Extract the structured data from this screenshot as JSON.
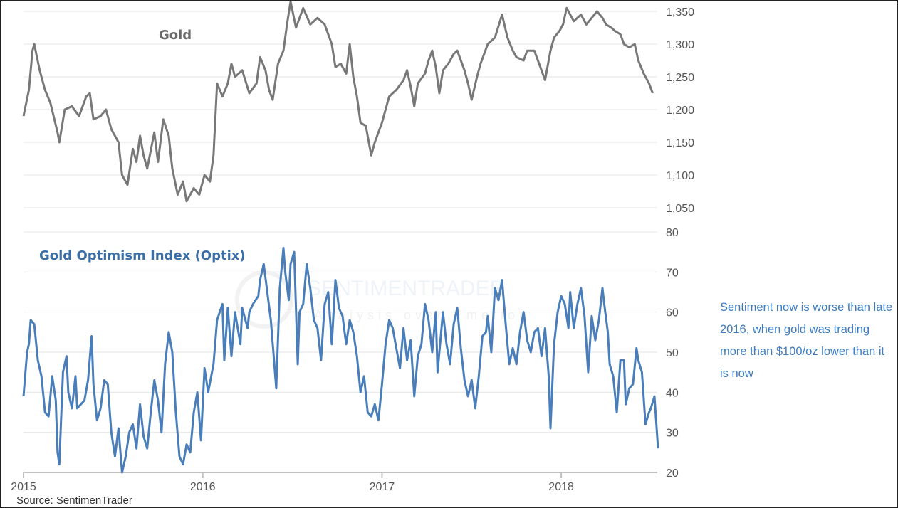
{
  "colors": {
    "gold": "#787878",
    "optix": "#4a7ebb",
    "grid": "#e6e6e6",
    "axis": "#c0c0c0",
    "note": "#3d7cc0"
  },
  "watermark": {
    "brand": "SENTIMENTRADER",
    "tagline": "Analysis over Emotion"
  },
  "annotation": "Sentiment now is worse than late 2016, when gold was trading more than $100/oz lower than it is now",
  "source": "Source: SentimenTrader",
  "chart_data": [
    {
      "type": "line",
      "title": "Gold",
      "ylim": [
        1050,
        1350
      ],
      "yticks": [
        "1,050",
        "1,100",
        "1,150",
        "1,200",
        "1,250",
        "1,300",
        "1,350"
      ],
      "ytick_values": [
        1050,
        1100,
        1150,
        1200,
        1250,
        1300,
        1350
      ],
      "xlim": [
        2015,
        2018.55
      ],
      "points": [
        [
          2015.0,
          1190
        ],
        [
          2015.03,
          1230
        ],
        [
          2015.05,
          1290
        ],
        [
          2015.06,
          1300
        ],
        [
          2015.09,
          1260
        ],
        [
          2015.12,
          1230
        ],
        [
          2015.15,
          1210
        ],
        [
          2015.19,
          1165
        ],
        [
          2015.2,
          1150
        ],
        [
          2015.23,
          1200
        ],
        [
          2015.27,
          1205
        ],
        [
          2015.31,
          1190
        ],
        [
          2015.35,
          1220
        ],
        [
          2015.37,
          1225
        ],
        [
          2015.39,
          1185
        ],
        [
          2015.43,
          1190
        ],
        [
          2015.46,
          1200
        ],
        [
          2015.49,
          1170
        ],
        [
          2015.53,
          1150
        ],
        [
          2015.55,
          1100
        ],
        [
          2015.58,
          1085
        ],
        [
          2015.61,
          1140
        ],
        [
          2015.63,
          1120
        ],
        [
          2015.65,
          1160
        ],
        [
          2015.67,
          1130
        ],
        [
          2015.69,
          1110
        ],
        [
          2015.73,
          1165
        ],
        [
          2015.75,
          1120
        ],
        [
          2015.78,
          1185
        ],
        [
          2015.81,
          1160
        ],
        [
          2015.83,
          1110
        ],
        [
          2015.86,
          1070
        ],
        [
          2015.89,
          1090
        ],
        [
          2015.91,
          1060
        ],
        [
          2015.95,
          1080
        ],
        [
          2015.98,
          1070
        ],
        [
          2016.01,
          1100
        ],
        [
          2016.04,
          1090
        ],
        [
          2016.06,
          1130
        ],
        [
          2016.08,
          1240
        ],
        [
          2016.11,
          1220
        ],
        [
          2016.14,
          1240
        ],
        [
          2016.16,
          1270
        ],
        [
          2016.18,
          1250
        ],
        [
          2016.22,
          1260
        ],
        [
          2016.26,
          1225
        ],
        [
          2016.3,
          1240
        ],
        [
          2016.32,
          1280
        ],
        [
          2016.35,
          1260
        ],
        [
          2016.37,
          1230
        ],
        [
          2016.39,
          1215
        ],
        [
          2016.42,
          1270
        ],
        [
          2016.45,
          1290
        ],
        [
          2016.47,
          1330
        ],
        [
          2016.49,
          1365
        ],
        [
          2016.52,
          1325
        ],
        [
          2016.56,
          1355
        ],
        [
          2016.6,
          1330
        ],
        [
          2016.64,
          1340
        ],
        [
          2016.68,
          1330
        ],
        [
          2016.72,
          1300
        ],
        [
          2016.74,
          1265
        ],
        [
          2016.77,
          1270
        ],
        [
          2016.8,
          1255
        ],
        [
          2016.82,
          1300
        ],
        [
          2016.84,
          1250
        ],
        [
          2016.86,
          1220
        ],
        [
          2016.88,
          1180
        ],
        [
          2016.91,
          1175
        ],
        [
          2016.94,
          1130
        ],
        [
          2016.96,
          1150
        ],
        [
          2017.0,
          1180
        ],
        [
          2017.04,
          1220
        ],
        [
          2017.08,
          1230
        ],
        [
          2017.12,
          1245
        ],
        [
          2017.14,
          1260
        ],
        [
          2017.16,
          1235
        ],
        [
          2017.18,
          1205
        ],
        [
          2017.2,
          1240
        ],
        [
          2017.24,
          1255
        ],
        [
          2017.26,
          1275
        ],
        [
          2017.28,
          1290
        ],
        [
          2017.3,
          1265
        ],
        [
          2017.32,
          1225
        ],
        [
          2017.34,
          1260
        ],
        [
          2017.37,
          1270
        ],
        [
          2017.4,
          1285
        ],
        [
          2017.42,
          1290
        ],
        [
          2017.46,
          1260
        ],
        [
          2017.48,
          1240
        ],
        [
          2017.5,
          1215
        ],
        [
          2017.53,
          1250
        ],
        [
          2017.55,
          1270
        ],
        [
          2017.59,
          1300
        ],
        [
          2017.63,
          1310
        ],
        [
          2017.67,
          1345
        ],
        [
          2017.7,
          1310
        ],
        [
          2017.73,
          1290
        ],
        [
          2017.75,
          1280
        ],
        [
          2017.79,
          1275
        ],
        [
          2017.81,
          1290
        ],
        [
          2017.85,
          1290
        ],
        [
          2017.89,
          1260
        ],
        [
          2017.91,
          1245
        ],
        [
          2017.94,
          1290
        ],
        [
          2017.96,
          1310
        ],
        [
          2017.99,
          1320
        ],
        [
          2018.01,
          1330
        ],
        [
          2018.03,
          1355
        ],
        [
          2018.07,
          1335
        ],
        [
          2018.11,
          1345
        ],
        [
          2018.14,
          1330
        ],
        [
          2018.17,
          1340
        ],
        [
          2018.2,
          1350
        ],
        [
          2018.23,
          1340
        ],
        [
          2018.25,
          1330
        ],
        [
          2018.28,
          1325
        ],
        [
          2018.3,
          1320
        ],
        [
          2018.33,
          1315
        ],
        [
          2018.35,
          1300
        ],
        [
          2018.38,
          1295
        ],
        [
          2018.41,
          1300
        ],
        [
          2018.43,
          1275
        ],
        [
          2018.46,
          1255
        ],
        [
          2018.49,
          1240
        ],
        [
          2018.51,
          1225
        ]
      ]
    },
    {
      "type": "line",
      "title": "Gold Optimism Index (Optix)",
      "ylim": [
        20,
        80
      ],
      "yticks": [
        "20",
        "30",
        "40",
        "50",
        "60",
        "70",
        "80"
      ],
      "ytick_values": [
        20,
        30,
        40,
        50,
        60,
        70,
        80
      ],
      "xlim": [
        2015,
        2018.55
      ],
      "xticks": [
        "2015",
        "2016",
        "2017",
        "2018"
      ],
      "xtick_values": [
        2015,
        2016,
        2017,
        2018
      ],
      "points": [
        [
          2015.0,
          39
        ],
        [
          2015.02,
          50
        ],
        [
          2015.03,
          52
        ],
        [
          2015.04,
          58
        ],
        [
          2015.06,
          57
        ],
        [
          2015.08,
          48
        ],
        [
          2015.1,
          44
        ],
        [
          2015.12,
          35
        ],
        [
          2015.14,
          34
        ],
        [
          2015.16,
          44
        ],
        [
          2015.18,
          38
        ],
        [
          2015.19,
          25
        ],
        [
          2015.2,
          22
        ],
        [
          2015.22,
          45
        ],
        [
          2015.24,
          49
        ],
        [
          2015.25,
          40
        ],
        [
          2015.27,
          36
        ],
        [
          2015.29,
          44
        ],
        [
          2015.3,
          36
        ],
        [
          2015.32,
          37
        ],
        [
          2015.34,
          38
        ],
        [
          2015.36,
          43
        ],
        [
          2015.38,
          54
        ],
        [
          2015.39,
          42
        ],
        [
          2015.41,
          33
        ],
        [
          2015.43,
          36
        ],
        [
          2015.45,
          43
        ],
        [
          2015.47,
          42
        ],
        [
          2015.49,
          30
        ],
        [
          2015.51,
          24
        ],
        [
          2015.53,
          31
        ],
        [
          2015.55,
          20
        ],
        [
          2015.57,
          24
        ],
        [
          2015.59,
          30
        ],
        [
          2015.61,
          32
        ],
        [
          2015.63,
          26
        ],
        [
          2015.65,
          37
        ],
        [
          2015.67,
          29
        ],
        [
          2015.69,
          26
        ],
        [
          2015.71,
          35
        ],
        [
          2015.73,
          43
        ],
        [
          2015.75,
          38
        ],
        [
          2015.77,
          30
        ],
        [
          2015.79,
          47
        ],
        [
          2015.81,
          55
        ],
        [
          2015.83,
          50
        ],
        [
          2015.85,
          35
        ],
        [
          2015.87,
          24
        ],
        [
          2015.89,
          22
        ],
        [
          2015.91,
          27
        ],
        [
          2015.93,
          25
        ],
        [
          2015.95,
          35
        ],
        [
          2015.97,
          40
        ],
        [
          2015.99,
          28
        ],
        [
          2016.01,
          46
        ],
        [
          2016.03,
          40
        ],
        [
          2016.06,
          47
        ],
        [
          2016.08,
          58
        ],
        [
          2016.11,
          62
        ],
        [
          2016.12,
          48
        ],
        [
          2016.14,
          61
        ],
        [
          2016.16,
          49
        ],
        [
          2016.18,
          60
        ],
        [
          2016.21,
          52
        ],
        [
          2016.22,
          61
        ],
        [
          2016.25,
          56
        ],
        [
          2016.26,
          60
        ],
        [
          2016.28,
          62
        ],
        [
          2016.31,
          64
        ],
        [
          2016.32,
          68
        ],
        [
          2016.34,
          72
        ],
        [
          2016.36,
          65
        ],
        [
          2016.38,
          58
        ],
        [
          2016.41,
          41
        ],
        [
          2016.43,
          66
        ],
        [
          2016.45,
          76
        ],
        [
          2016.46,
          70
        ],
        [
          2016.48,
          63
        ],
        [
          2016.49,
          72
        ],
        [
          2016.51,
          75
        ],
        [
          2016.53,
          47
        ],
        [
          2016.54,
          60
        ],
        [
          2016.56,
          62
        ],
        [
          2016.58,
          72
        ],
        [
          2016.6,
          66
        ],
        [
          2016.62,
          58
        ],
        [
          2016.64,
          56
        ],
        [
          2016.66,
          48
        ],
        [
          2016.68,
          62
        ],
        [
          2016.7,
          65
        ],
        [
          2016.72,
          52
        ],
        [
          2016.74,
          68
        ],
        [
          2016.76,
          61
        ],
        [
          2016.78,
          59
        ],
        [
          2016.8,
          52
        ],
        [
          2016.82,
          58
        ],
        [
          2016.84,
          55
        ],
        [
          2016.86,
          49
        ],
        [
          2016.88,
          40
        ],
        [
          2016.9,
          44
        ],
        [
          2016.92,
          35
        ],
        [
          2016.94,
          34
        ],
        [
          2016.96,
          37
        ],
        [
          2016.98,
          33
        ],
        [
          2017.0,
          42
        ],
        [
          2017.02,
          52
        ],
        [
          2017.04,
          58
        ],
        [
          2017.06,
          56
        ],
        [
          2017.08,
          51
        ],
        [
          2017.1,
          46
        ],
        [
          2017.12,
          56
        ],
        [
          2017.14,
          48
        ],
        [
          2017.16,
          53
        ],
        [
          2017.18,
          39
        ],
        [
          2017.2,
          49
        ],
        [
          2017.22,
          52
        ],
        [
          2017.24,
          62
        ],
        [
          2017.26,
          58
        ],
        [
          2017.28,
          50
        ],
        [
          2017.3,
          60
        ],
        [
          2017.31,
          45
        ],
        [
          2017.34,
          60
        ],
        [
          2017.36,
          52
        ],
        [
          2017.38,
          47
        ],
        [
          2017.4,
          57
        ],
        [
          2017.42,
          61
        ],
        [
          2017.44,
          51
        ],
        [
          2017.46,
          43
        ],
        [
          2017.48,
          39
        ],
        [
          2017.5,
          43
        ],
        [
          2017.52,
          36
        ],
        [
          2017.54,
          44
        ],
        [
          2017.56,
          54
        ],
        [
          2017.58,
          55
        ],
        [
          2017.59,
          59
        ],
        [
          2017.61,
          50
        ],
        [
          2017.63,
          66
        ],
        [
          2017.65,
          63
        ],
        [
          2017.67,
          68
        ],
        [
          2017.69,
          57
        ],
        [
          2017.71,
          47
        ],
        [
          2017.73,
          51
        ],
        [
          2017.75,
          47
        ],
        [
          2017.77,
          55
        ],
        [
          2017.79,
          60
        ],
        [
          2017.81,
          53
        ],
        [
          2017.83,
          50
        ],
        [
          2017.85,
          55
        ],
        [
          2017.87,
          56
        ],
        [
          2017.89,
          49
        ],
        [
          2017.91,
          56
        ],
        [
          2017.93,
          44
        ],
        [
          2017.94,
          31
        ],
        [
          2017.96,
          52
        ],
        [
          2017.98,
          60
        ],
        [
          2018.0,
          64
        ],
        [
          2018.02,
          62
        ],
        [
          2018.04,
          56
        ],
        [
          2018.05,
          65
        ],
        [
          2018.07,
          56
        ],
        [
          2018.09,
          62
        ],
        [
          2018.11,
          66
        ],
        [
          2018.13,
          59
        ],
        [
          2018.15,
          45
        ],
        [
          2018.17,
          59
        ],
        [
          2018.19,
          53
        ],
        [
          2018.21,
          58
        ],
        [
          2018.23,
          66
        ],
        [
          2018.24,
          62
        ],
        [
          2018.26,
          55
        ],
        [
          2018.27,
          47
        ],
        [
          2018.29,
          44
        ],
        [
          2018.31,
          35
        ],
        [
          2018.33,
          48
        ],
        [
          2018.35,
          48
        ],
        [
          2018.36,
          37
        ],
        [
          2018.38,
          41
        ],
        [
          2018.4,
          42
        ],
        [
          2018.42,
          51
        ],
        [
          2018.43,
          48
        ],
        [
          2018.45,
          45
        ],
        [
          2018.47,
          32
        ],
        [
          2018.49,
          35
        ],
        [
          2018.5,
          36
        ],
        [
          2018.52,
          39
        ],
        [
          2018.54,
          26
        ]
      ]
    }
  ]
}
